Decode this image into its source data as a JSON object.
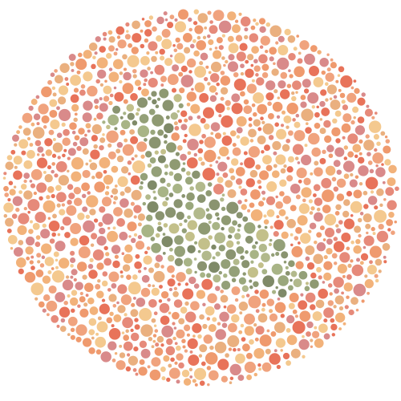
{
  "plate": {
    "hidden_figure": "bird",
    "background_palette": [
      "#e8735a",
      "#ef9a6e",
      "#f2b27a",
      "#f4c98f",
      "#e68a7a",
      "#d98a8a",
      "#f0a37e",
      "#eab07f"
    ],
    "figure_palette": [
      "#8f9a72",
      "#9aa77c",
      "#a8b486",
      "#7f8a68",
      "#b2b98c",
      "#94a078",
      "#c3c08a",
      "#8a9470"
    ],
    "background_color": "#ffffff"
  }
}
